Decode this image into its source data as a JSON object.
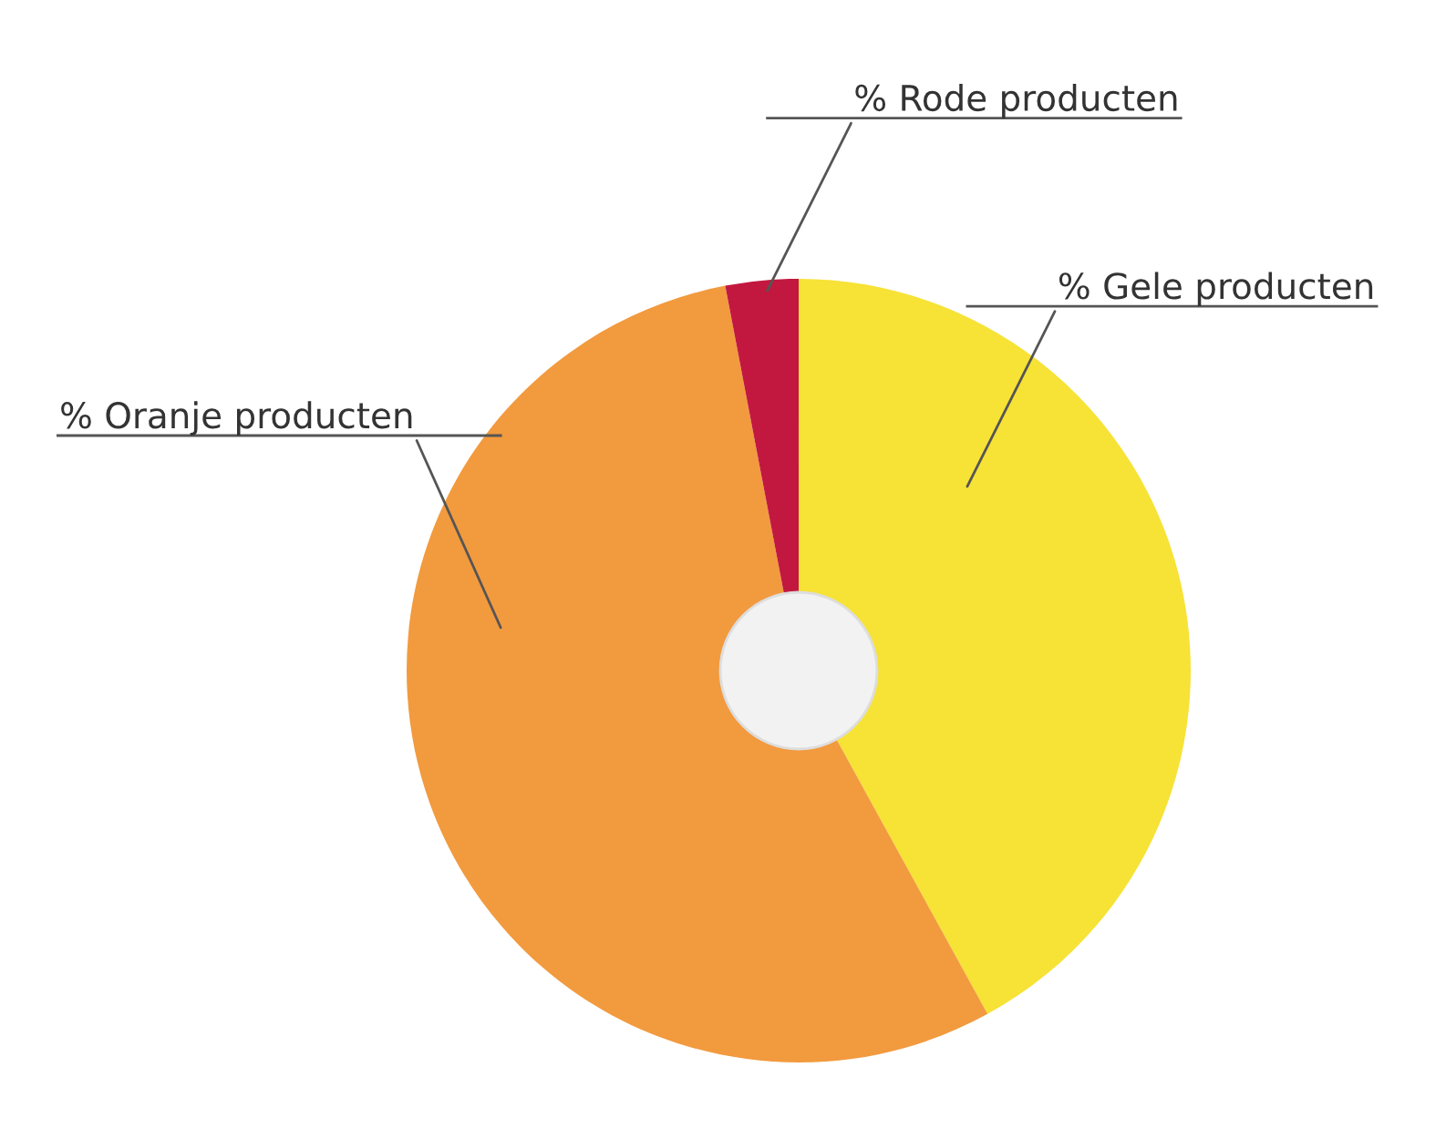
{
  "chart_data": {
    "type": "donut",
    "categories": [
      "% Gele producten",
      "% Oranje producten",
      "% Rode producten"
    ],
    "values": [
      42,
      55,
      3
    ],
    "colors": [
      "#f7e236",
      "#f29a3e",
      "#c2183f"
    ]
  }
}
